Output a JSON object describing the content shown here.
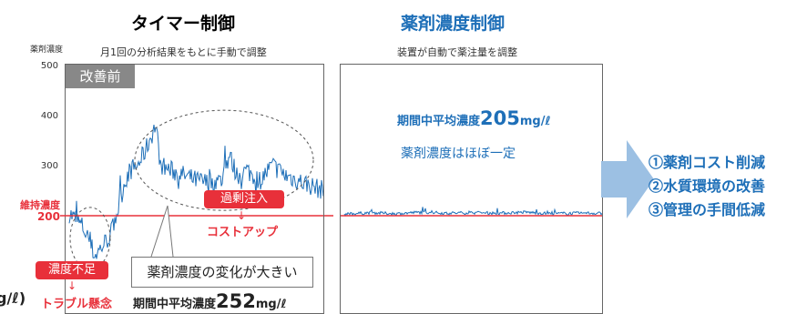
{
  "left_panel": {
    "title": "タイマー制御",
    "subtitle": "月1回の分析結果をもとに手動で調整",
    "badge": "改善前",
    "callout": "薬剤濃度の変化が大きい",
    "excess_label": "過剰注入",
    "cost_label": "コストアップ",
    "shortage_label": "濃度不足",
    "trouble_label": "トラブル懸念",
    "avg_prefix": "期間中平均濃度",
    "avg_value": "252",
    "avg_unit": "mg/ℓ"
  },
  "right_panel": {
    "title": "薬剤濃度制御",
    "subtitle": "装置が自動で薬注量を調整",
    "avg_prefix": "期間中平均濃度",
    "avg_value": "205",
    "avg_unit": "mg/ℓ",
    "note": "薬剤濃度はほぼ一定"
  },
  "y_axis": {
    "label": "薬剤濃度",
    "ticks": [
      "500",
      "400",
      "300"
    ],
    "maintain_label_1": "維持濃度",
    "maintain_label_2": "200"
  },
  "cut_unit": "g/ℓ)",
  "results": [
    "①薬剤コスト削減",
    "②水質環境の改善",
    "③管理の手間低減"
  ],
  "colors": {
    "title_blue": "#1e6fb8",
    "series_blue": "#1e6fb8",
    "threshold_red": "#e8303a",
    "arrow_blue": "#9cc0e3"
  },
  "chart_data": [
    {
      "type": "line",
      "title": "タイマー制御",
      "ylabel": "薬剤濃度",
      "ylim": [
        100,
        500
      ],
      "yticks": [
        200,
        300,
        400,
        500
      ],
      "threshold": {
        "value": 200,
        "label": "維持濃度"
      },
      "series": [
        {
          "x": [
            0,
            0.05,
            0.08,
            0.1,
            0.13,
            0.16,
            0.18,
            0.2,
            0.22,
            0.24,
            0.27,
            0.3,
            0.34,
            0.36,
            0.4,
            0.45,
            0.5,
            0.55,
            0.6,
            0.63,
            0.66,
            0.7,
            0.75,
            0.8,
            0.85,
            0.9,
            0.95,
            1
          ],
          "y": [
            205,
            180,
            150,
            120,
            140,
            160,
            190,
            230,
            270,
            290,
            300,
            330,
            380,
            300,
            290,
            280,
            270,
            265,
            270,
            320,
            280,
            290,
            270,
            300,
            280,
            270,
            260,
            250
          ]
        }
      ]
    },
    {
      "type": "line",
      "title": "薬剤濃度制御",
      "ylim": [
        100,
        500
      ],
      "threshold": {
        "value": 200
      },
      "series": [
        {
          "x": [
            0,
            0.1,
            0.2,
            0.3,
            0.4,
            0.5,
            0.6,
            0.7,
            0.8,
            0.9,
            1
          ],
          "y": [
            203,
            206,
            204,
            207,
            205,
            206,
            205,
            207,
            204,
            205,
            205
          ]
        }
      ]
    }
  ]
}
